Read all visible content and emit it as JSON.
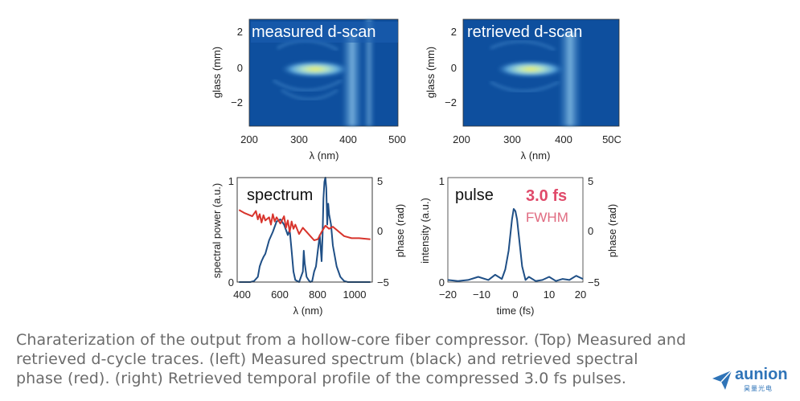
{
  "chart_data": [
    {
      "type": "heatmap",
      "title": "measured d-scan",
      "xlabel": "λ (nm)",
      "ylabel": "glass (mm)",
      "xticks": [
        "200",
        "300",
        "400",
        "500"
      ],
      "yticks": [
        "2",
        "0",
        "−2"
      ],
      "xlim": [
        200,
        500
      ],
      "ylim": [
        -3.6,
        2.6
      ],
      "bright_streak": {
        "x": [
          330,
          380
        ],
        "y": [
          0,
          0
        ]
      },
      "colors": {
        "background": "#0e4f9e",
        "high": "#f2ee50"
      }
    },
    {
      "type": "heatmap",
      "title": "retrieved d-scan",
      "xlabel": "λ (nm)",
      "ylabel": "glass (mm)",
      "xticks": [
        "200",
        "300",
        "400",
        "50C"
      ],
      "yticks": [
        "2",
        "0",
        "−2"
      ],
      "xlim": [
        200,
        500
      ],
      "ylim": [
        -3.6,
        2.6
      ],
      "bright_streak": {
        "x": [
          330,
          380
        ],
        "y": [
          0,
          0
        ]
      },
      "colors": {
        "background": "#0e4f9e",
        "high": "#f2ee50"
      }
    },
    {
      "type": "line",
      "title": "spectrum",
      "xlabel": "λ (nm)",
      "ylabel": "spectral power (a.u.)",
      "y2label": "phase (rad)",
      "xticks": [
        "400",
        "600",
        "800",
        "1000"
      ],
      "yticks": [
        "0",
        "1"
      ],
      "y2ticks": [
        "5",
        "0",
        "−5"
      ],
      "xlim": [
        390,
        1110
      ],
      "ylim": [
        0,
        1
      ],
      "y2lim": [
        -5,
        5
      ],
      "series": [
        {
          "axis": "left",
          "color": "#1f4f86",
          "x": [
            400,
            420,
            440,
            460,
            480,
            500,
            510,
            520,
            530,
            540,
            560,
            580,
            600,
            620,
            640,
            660,
            670,
            680,
            690,
            700,
            720,
            740,
            745,
            750,
            760,
            770,
            780,
            790,
            800,
            810,
            820,
            830,
            840,
            845,
            850,
            855,
            860,
            865,
            870,
            875,
            880,
            885,
            890,
            900,
            920,
            940,
            960,
            980,
            1000,
            1050,
            1100
          ],
          "y": [
            0,
            0,
            0,
            0,
            0.01,
            0.05,
            0.15,
            0.2,
            0.24,
            0.27,
            0.4,
            0.48,
            0.58,
            0.6,
            0.55,
            0.45,
            0.5,
            0.3,
            0.1,
            0.02,
            0,
            0.1,
            0.3,
            0.18,
            0.05,
            0.02,
            0,
            0.01,
            0.1,
            0.15,
            0.3,
            0.45,
            0.2,
            0.45,
            0.8,
            0.96,
            1.0,
            0.9,
            0.55,
            0.75,
            0.65,
            0.6,
            0.55,
            0.35,
            0.15,
            0.05,
            0.01,
            0,
            0,
            0,
            0
          ]
        },
        {
          "axis": "right",
          "color": "#d8342c",
          "x": [
            400,
            430,
            470,
            490,
            500,
            510,
            520,
            530,
            540,
            560,
            570,
            580,
            590,
            600,
            620,
            640,
            650,
            660,
            670,
            680,
            690,
            700,
            720,
            740,
            760,
            780,
            800,
            820,
            840,
            860,
            880,
            900,
            960,
            1000,
            1040,
            1100
          ],
          "y": [
            1.9,
            1.6,
            1.3,
            1.8,
            1.0,
            1.5,
            0.7,
            1.4,
            0.9,
            1.2,
            0.5,
            1.5,
            0.8,
            1.2,
            0.6,
            1.3,
            0.2,
            0.9,
            -0.2,
            0.8,
            0.1,
            0.5,
            -0.4,
            0.2,
            -0.2,
            -0.6,
            -1.0,
            -0.9,
            -0.2,
            0.4,
            0.1,
            0.3,
            -0.6,
            -0.8,
            -0.8,
            -0.9
          ]
        }
      ]
    },
    {
      "type": "line",
      "title": "pulse",
      "annotation_value": "3.0 fs",
      "annotation_label": "FWHM",
      "xlabel": "time (fs)",
      "ylabel": "intensity (a.u.)",
      "y2label": "phase (rad)",
      "xticks": [
        "−20",
        "−10",
        "0",
        "10",
        "20"
      ],
      "yticks": [
        "0",
        "1"
      ],
      "y2ticks": [
        "5",
        "0",
        "−5"
      ],
      "xlim": [
        -20,
        20
      ],
      "ylim": [
        0,
        1
      ],
      "y2lim": [
        -5,
        5
      ],
      "series": [
        {
          "axis": "left",
          "color": "#1f4f86",
          "x": [
            -20,
            -17,
            -14,
            -11,
            -8,
            -6,
            -4,
            -3,
            -2,
            -1.5,
            -1,
            -0.5,
            0,
            0.5,
            1,
            1.5,
            2,
            3,
            4,
            6,
            8,
            10,
            12,
            14,
            16,
            18,
            20
          ],
          "y": [
            0.02,
            0.01,
            0.02,
            0.05,
            0.02,
            0.07,
            0.03,
            0.12,
            0.3,
            0.45,
            0.6,
            0.7,
            0.68,
            0.6,
            0.45,
            0.3,
            0.15,
            0.02,
            0.05,
            0.01,
            0.02,
            0.05,
            0.01,
            0.03,
            0.02,
            0.06,
            0.03
          ]
        }
      ]
    }
  ],
  "caption": {
    "line1": "Charaterization of the output from a hollow-core fiber compressor. (Top) Measured and",
    "line2": "retrieved d-cycle traces. (left) Measured spectrum (black) and retrieved spectral",
    "line3": "phase (red). (right) Retrieved temporal profile of the compressed 3.0 fs pulses."
  },
  "brand": {
    "name": "aunion",
    "sub": "昊量光电",
    "color": "#2f74b8"
  }
}
